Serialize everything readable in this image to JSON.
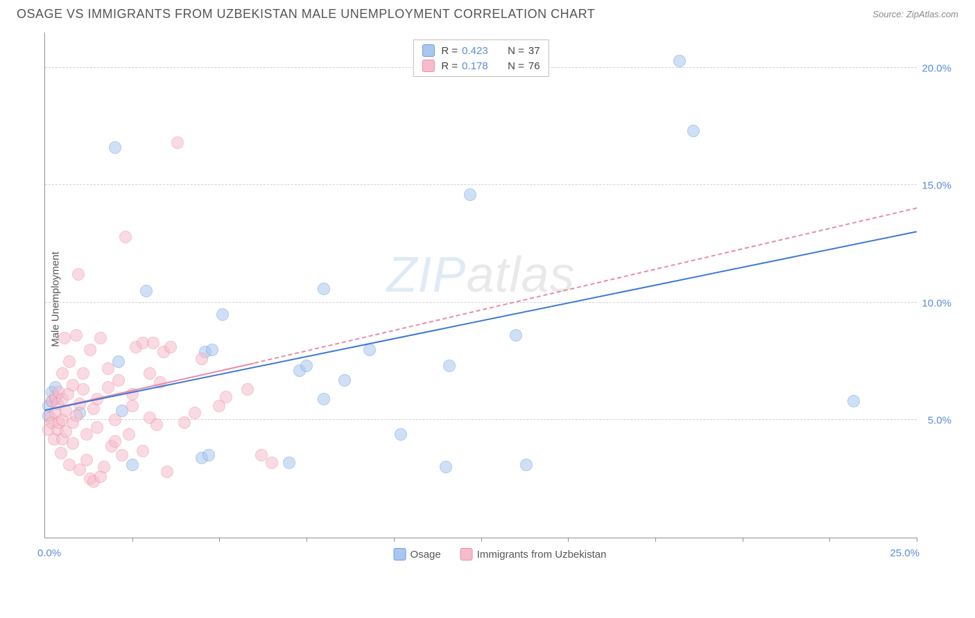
{
  "header": {
    "title": "OSAGE VS IMMIGRANTS FROM UZBEKISTAN MALE UNEMPLOYMENT CORRELATION CHART",
    "source": "Source: ZipAtlas.com"
  },
  "chart": {
    "type": "scatter",
    "ylabel": "Male Unemployment",
    "xlim": [
      0,
      25
    ],
    "ylim": [
      0,
      21.5
    ],
    "ytick_values": [
      5,
      10,
      15,
      20
    ],
    "ytick_labels": [
      "5.0%",
      "10.0%",
      "15.0%",
      "20.0%"
    ],
    "xtick_values": [
      2.5,
      5,
      7.5,
      10,
      12.5,
      15,
      17.5,
      20,
      22.5,
      25
    ],
    "x_start_label": "0.0%",
    "x_end_label": "25.0%",
    "background_color": "#ffffff",
    "grid_color": "#d0d0d0",
    "marker_radius": 9,
    "marker_opacity": 0.55,
    "watermark": "ZIPatlas",
    "series": [
      {
        "id": "osage",
        "label": "Osage",
        "fill": "#a9c7ef",
        "stroke": "#6d9ddb",
        "line_color": "#3b78d8",
        "line_dash": "solid",
        "line_width": 2.5,
        "r_value": "0.423",
        "n_value": "37",
        "trend": {
          "x1": 0,
          "y1": 5.4,
          "x2": 25,
          "y2": 13.0
        },
        "points": [
          [
            0.1,
            5.6
          ],
          [
            0.1,
            5.2
          ],
          [
            0.2,
            5.8
          ],
          [
            0.2,
            6.2
          ],
          [
            0.3,
            5.9
          ],
          [
            0.3,
            6.4
          ],
          [
            1.0,
            5.3
          ],
          [
            2.2,
            5.4
          ],
          [
            2.1,
            7.5
          ],
          [
            2.0,
            16.6
          ],
          [
            2.5,
            3.1
          ],
          [
            2.9,
            10.5
          ],
          [
            4.5,
            3.4
          ],
          [
            4.7,
            3.5
          ],
          [
            4.6,
            7.9
          ],
          [
            4.8,
            8.0
          ],
          [
            5.1,
            9.5
          ],
          [
            7.0,
            3.2
          ],
          [
            7.3,
            7.1
          ],
          [
            7.5,
            7.3
          ],
          [
            8.0,
            10.6
          ],
          [
            8.0,
            5.9
          ],
          [
            8.6,
            6.7
          ],
          [
            9.3,
            8.0
          ],
          [
            10.2,
            4.4
          ],
          [
            11.5,
            3.0
          ],
          [
            11.6,
            7.3
          ],
          [
            12.2,
            14.6
          ],
          [
            13.5,
            8.6
          ],
          [
            13.8,
            3.1
          ],
          [
            18.2,
            20.3
          ],
          [
            18.6,
            17.3
          ],
          [
            23.2,
            5.8
          ]
        ]
      },
      {
        "id": "uzbekistan",
        "label": "Immigrants from Uzbekistan",
        "fill": "#f7bccb",
        "stroke": "#e98fa8",
        "line_color": "#e88ba5",
        "line_dash": "solid",
        "line_dash_ext": "dashed",
        "line_width": 2,
        "r_value": "0.178",
        "n_value": "76",
        "trend": {
          "x1": 0,
          "y1": 5.4,
          "x2": 6,
          "y2": 7.4
        },
        "trend_ext": {
          "x1": 6,
          "y1": 7.4,
          "x2": 25,
          "y2": 14.0
        },
        "points": [
          [
            0.1,
            4.6
          ],
          [
            0.15,
            5.1
          ],
          [
            0.2,
            4.9
          ],
          [
            0.2,
            5.8
          ],
          [
            0.25,
            4.2
          ],
          [
            0.3,
            5.3
          ],
          [
            0.3,
            6.0
          ],
          [
            0.35,
            4.6
          ],
          [
            0.35,
            5.7
          ],
          [
            0.4,
            4.9
          ],
          [
            0.4,
            6.2
          ],
          [
            0.45,
            3.6
          ],
          [
            0.5,
            4.2
          ],
          [
            0.5,
            5.0
          ],
          [
            0.5,
            5.9
          ],
          [
            0.5,
            7.0
          ],
          [
            0.55,
            8.5
          ],
          [
            0.6,
            4.5
          ],
          [
            0.6,
            5.4
          ],
          [
            0.65,
            6.1
          ],
          [
            0.7,
            3.1
          ],
          [
            0.7,
            7.5
          ],
          [
            0.8,
            4.0
          ],
          [
            0.8,
            4.9
          ],
          [
            0.8,
            6.5
          ],
          [
            0.9,
            5.2
          ],
          [
            0.9,
            8.6
          ],
          [
            0.95,
            11.2
          ],
          [
            1.0,
            2.9
          ],
          [
            1.0,
            5.7
          ],
          [
            1.1,
            6.3
          ],
          [
            1.1,
            7.0
          ],
          [
            1.2,
            3.3
          ],
          [
            1.2,
            4.4
          ],
          [
            1.3,
            2.5
          ],
          [
            1.3,
            8.0
          ],
          [
            1.4,
            2.4
          ],
          [
            1.4,
            5.5
          ],
          [
            1.5,
            4.7
          ],
          [
            1.5,
            5.9
          ],
          [
            1.6,
            2.6
          ],
          [
            1.6,
            8.5
          ],
          [
            1.7,
            3.0
          ],
          [
            1.8,
            6.4
          ],
          [
            1.8,
            7.2
          ],
          [
            1.9,
            3.9
          ],
          [
            2.0,
            5.0
          ],
          [
            2.0,
            4.1
          ],
          [
            2.1,
            6.7
          ],
          [
            2.2,
            3.5
          ],
          [
            2.3,
            12.8
          ],
          [
            2.4,
            4.4
          ],
          [
            2.5,
            5.6
          ],
          [
            2.5,
            6.1
          ],
          [
            2.6,
            8.1
          ],
          [
            2.8,
            3.7
          ],
          [
            2.8,
            8.3
          ],
          [
            3.0,
            5.1
          ],
          [
            3.0,
            7.0
          ],
          [
            3.1,
            8.3
          ],
          [
            3.2,
            4.8
          ],
          [
            3.3,
            6.6
          ],
          [
            3.4,
            7.9
          ],
          [
            3.5,
            2.8
          ],
          [
            3.6,
            8.1
          ],
          [
            3.8,
            16.8
          ],
          [
            4.0,
            4.9
          ],
          [
            4.3,
            5.3
          ],
          [
            4.5,
            7.6
          ],
          [
            5.0,
            5.6
          ],
          [
            5.2,
            6.0
          ],
          [
            5.8,
            6.3
          ],
          [
            6.2,
            3.5
          ],
          [
            6.5,
            3.2
          ]
        ]
      }
    ]
  },
  "legend_bottom": {
    "series1_label": "Osage",
    "series2_label": "Immigrants from Uzbekistan"
  }
}
